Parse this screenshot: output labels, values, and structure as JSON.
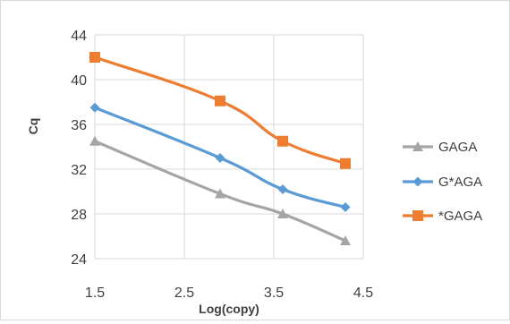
{
  "chart_data": {
    "type": "line",
    "title": "",
    "xlabel": "Log(copy)",
    "ylabel": "Cq",
    "xlim": [
      1.5,
      4.5
    ],
    "ylim": [
      24,
      44
    ],
    "x_ticks": [
      "1.5",
      "2.5",
      "3.5",
      "4.5"
    ],
    "y_ticks": [
      "24",
      "28",
      "32",
      "36",
      "40",
      "44"
    ],
    "grid": true,
    "legend_position": "right",
    "series": [
      {
        "name": "GAGA",
        "color": "#a5a5a5",
        "marker": "triangle",
        "x": [
          1.5,
          2.9,
          3.6,
          4.3
        ],
        "y": [
          34.5,
          29.8,
          28.0,
          25.6
        ]
      },
      {
        "name": "G*AGA",
        "color": "#5b9bd5",
        "marker": "diamond",
        "x": [
          1.5,
          2.9,
          3.6,
          4.3
        ],
        "y": [
          37.5,
          33.0,
          30.2,
          28.6
        ]
      },
      {
        "name": "*GAGA",
        "color": "#ed7d31",
        "marker": "square",
        "x": [
          1.5,
          2.9,
          3.6,
          4.3
        ],
        "y": [
          42.0,
          38.1,
          34.5,
          32.5
        ]
      }
    ]
  }
}
